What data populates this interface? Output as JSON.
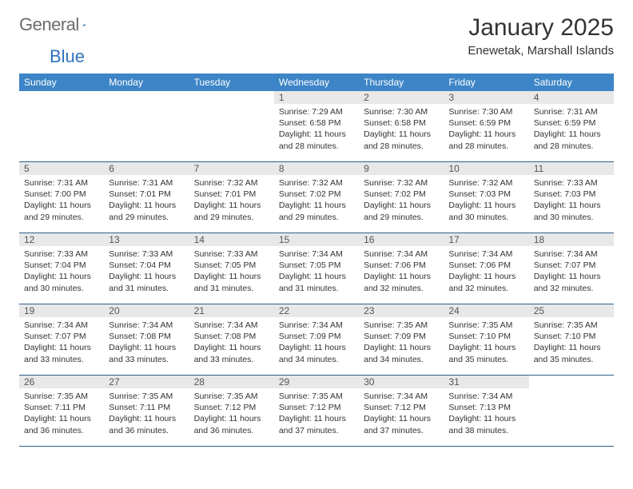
{
  "brand": {
    "word1": "General",
    "word2": "Blue"
  },
  "header": {
    "month_title": "January 2025",
    "location": "Enewetak, Marshall Islands"
  },
  "colors": {
    "header_bg": "#3d85c6",
    "header_text": "#ffffff",
    "daynum_bg": "#e8e8e8",
    "row_border": "#2f5f8f",
    "logo_gray": "#6b6b6b",
    "logo_blue": "#2f72b9"
  },
  "day_headers": [
    "Sunday",
    "Monday",
    "Tuesday",
    "Wednesday",
    "Thursday",
    "Friday",
    "Saturday"
  ],
  "weeks": [
    [
      null,
      null,
      null,
      {
        "n": "1",
        "sr": "7:29 AM",
        "ss": "6:58 PM",
        "dl": "11 hours and 28 minutes."
      },
      {
        "n": "2",
        "sr": "7:30 AM",
        "ss": "6:58 PM",
        "dl": "11 hours and 28 minutes."
      },
      {
        "n": "3",
        "sr": "7:30 AM",
        "ss": "6:59 PM",
        "dl": "11 hours and 28 minutes."
      },
      {
        "n": "4",
        "sr": "7:31 AM",
        "ss": "6:59 PM",
        "dl": "11 hours and 28 minutes."
      }
    ],
    [
      {
        "n": "5",
        "sr": "7:31 AM",
        "ss": "7:00 PM",
        "dl": "11 hours and 29 minutes."
      },
      {
        "n": "6",
        "sr": "7:31 AM",
        "ss": "7:01 PM",
        "dl": "11 hours and 29 minutes."
      },
      {
        "n": "7",
        "sr": "7:32 AM",
        "ss": "7:01 PM",
        "dl": "11 hours and 29 minutes."
      },
      {
        "n": "8",
        "sr": "7:32 AM",
        "ss": "7:02 PM",
        "dl": "11 hours and 29 minutes."
      },
      {
        "n": "9",
        "sr": "7:32 AM",
        "ss": "7:02 PM",
        "dl": "11 hours and 29 minutes."
      },
      {
        "n": "10",
        "sr": "7:32 AM",
        "ss": "7:03 PM",
        "dl": "11 hours and 30 minutes."
      },
      {
        "n": "11",
        "sr": "7:33 AM",
        "ss": "7:03 PM",
        "dl": "11 hours and 30 minutes."
      }
    ],
    [
      {
        "n": "12",
        "sr": "7:33 AM",
        "ss": "7:04 PM",
        "dl": "11 hours and 30 minutes."
      },
      {
        "n": "13",
        "sr": "7:33 AM",
        "ss": "7:04 PM",
        "dl": "11 hours and 31 minutes."
      },
      {
        "n": "14",
        "sr": "7:33 AM",
        "ss": "7:05 PM",
        "dl": "11 hours and 31 minutes."
      },
      {
        "n": "15",
        "sr": "7:34 AM",
        "ss": "7:05 PM",
        "dl": "11 hours and 31 minutes."
      },
      {
        "n": "16",
        "sr": "7:34 AM",
        "ss": "7:06 PM",
        "dl": "11 hours and 32 minutes."
      },
      {
        "n": "17",
        "sr": "7:34 AM",
        "ss": "7:06 PM",
        "dl": "11 hours and 32 minutes."
      },
      {
        "n": "18",
        "sr": "7:34 AM",
        "ss": "7:07 PM",
        "dl": "11 hours and 32 minutes."
      }
    ],
    [
      {
        "n": "19",
        "sr": "7:34 AM",
        "ss": "7:07 PM",
        "dl": "11 hours and 33 minutes."
      },
      {
        "n": "20",
        "sr": "7:34 AM",
        "ss": "7:08 PM",
        "dl": "11 hours and 33 minutes."
      },
      {
        "n": "21",
        "sr": "7:34 AM",
        "ss": "7:08 PM",
        "dl": "11 hours and 33 minutes."
      },
      {
        "n": "22",
        "sr": "7:34 AM",
        "ss": "7:09 PM",
        "dl": "11 hours and 34 minutes."
      },
      {
        "n": "23",
        "sr": "7:35 AM",
        "ss": "7:09 PM",
        "dl": "11 hours and 34 minutes."
      },
      {
        "n": "24",
        "sr": "7:35 AM",
        "ss": "7:10 PM",
        "dl": "11 hours and 35 minutes."
      },
      {
        "n": "25",
        "sr": "7:35 AM",
        "ss": "7:10 PM",
        "dl": "11 hours and 35 minutes."
      }
    ],
    [
      {
        "n": "26",
        "sr": "7:35 AM",
        "ss": "7:11 PM",
        "dl": "11 hours and 36 minutes."
      },
      {
        "n": "27",
        "sr": "7:35 AM",
        "ss": "7:11 PM",
        "dl": "11 hours and 36 minutes."
      },
      {
        "n": "28",
        "sr": "7:35 AM",
        "ss": "7:12 PM",
        "dl": "11 hours and 36 minutes."
      },
      {
        "n": "29",
        "sr": "7:35 AM",
        "ss": "7:12 PM",
        "dl": "11 hours and 37 minutes."
      },
      {
        "n": "30",
        "sr": "7:34 AM",
        "ss": "7:12 PM",
        "dl": "11 hours and 37 minutes."
      },
      {
        "n": "31",
        "sr": "7:34 AM",
        "ss": "7:13 PM",
        "dl": "11 hours and 38 minutes."
      },
      null
    ]
  ],
  "labels": {
    "sunrise_prefix": "Sunrise: ",
    "sunset_prefix": "Sunset: ",
    "daylight_prefix": "Daylight: "
  }
}
